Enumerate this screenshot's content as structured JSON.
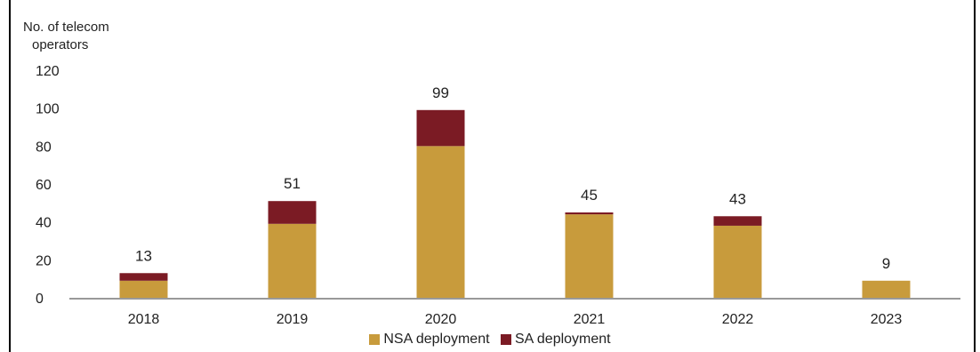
{
  "chart_data": {
    "type": "bar",
    "stacked": true,
    "ylabel_lines": [
      "No. of telecom",
      "operators"
    ],
    "categories": [
      "2018",
      "2019",
      "2020",
      "2021",
      "2022",
      "2023"
    ],
    "series": [
      {
        "name": "NSA deployment",
        "color": "#C89B3C",
        "values": [
          9,
          39,
          80,
          44,
          38,
          9
        ]
      },
      {
        "name": "SA deployment",
        "color": "#7B1B24",
        "values": [
          4,
          12,
          19,
          1,
          5,
          0
        ]
      }
    ],
    "totals": [
      "13",
      "51",
      "99",
      "45",
      "43",
      "9"
    ],
    "ylim": [
      0,
      120
    ],
    "yticks": [
      0,
      20,
      40,
      60,
      80,
      100,
      120
    ],
    "grid": false,
    "legend_position": "bottom"
  }
}
